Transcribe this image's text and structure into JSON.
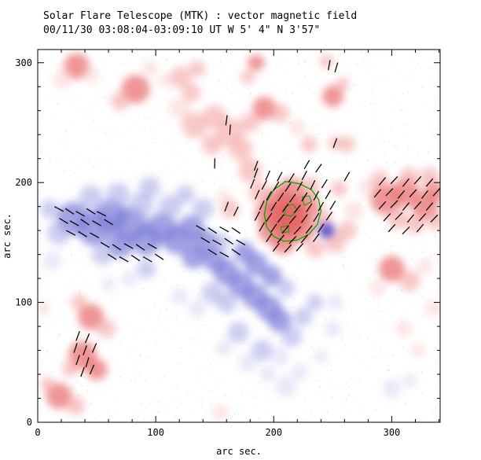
{
  "chart_data": {
    "type": "heatmap",
    "title": "Solar Flare Telescope (MTK) : vector magnetic field",
    "subtitle": "00/11/30  03:08:04-03:09:10 UT    W 5' 4\"  N 3'57\"",
    "xlabel": "arc sec.",
    "ylabel": "arc sec.",
    "xlim": [
      0,
      341
    ],
    "ylim": [
      0,
      311
    ],
    "xticks": [
      0,
      100,
      200,
      300
    ],
    "yticks": [
      0,
      100,
      200,
      300
    ],
    "minor_tick_step": 20,
    "grid": false,
    "colors": {
      "background": "#ffffff",
      "axis": "#000000",
      "positive_polarity": "#e06060",
      "negative_polarity": "#6868d0",
      "contour": "#00aa00",
      "vector": "#000000",
      "speckle_positive": "#f0a0a0",
      "speckle_negative": "#a0a0e0"
    },
    "regions_positive": [
      [
        33,
        297,
        11,
        "m"
      ],
      [
        21,
        286,
        8,
        "f"
      ],
      [
        45,
        290,
        7,
        "f"
      ],
      [
        95,
        295,
        7,
        "f"
      ],
      [
        108,
        285,
        6,
        "f"
      ],
      [
        83,
        278,
        12,
        "m"
      ],
      [
        70,
        268,
        8,
        "l"
      ],
      [
        121,
        288,
        9,
        "l"
      ],
      [
        135,
        295,
        7,
        "l"
      ],
      [
        130,
        275,
        8,
        "l"
      ],
      [
        120,
        262,
        9,
        "f"
      ],
      [
        133,
        248,
        11,
        "l"
      ],
      [
        150,
        255,
        10,
        "l"
      ],
      [
        163,
        242,
        12,
        "l"
      ],
      [
        148,
        232,
        9,
        "l"
      ],
      [
        185,
        300,
        7,
        "m"
      ],
      [
        178,
        288,
        6,
        "l"
      ],
      [
        192,
        262,
        10,
        "m"
      ],
      [
        205,
        258,
        8,
        "l"
      ],
      [
        180,
        250,
        8,
        "l"
      ],
      [
        172,
        228,
        10,
        "l"
      ],
      [
        180,
        210,
        10,
        "l"
      ],
      [
        220,
        246,
        7,
        "f"
      ],
      [
        250,
        272,
        9,
        "m"
      ],
      [
        258,
        282,
        6,
        "l"
      ],
      [
        245,
        301,
        6,
        "l"
      ],
      [
        212,
        172,
        16,
        "s"
      ],
      [
        205,
        182,
        14,
        "m"
      ],
      [
        222,
        162,
        13,
        "m"
      ],
      [
        198,
        160,
        11,
        "m"
      ],
      [
        215,
        192,
        12,
        "m"
      ],
      [
        228,
        180,
        11,
        "m"
      ],
      [
        194,
        174,
        10,
        "m"
      ],
      [
        208,
        150,
        10,
        "m"
      ],
      [
        230,
        196,
        9,
        "l"
      ],
      [
        240,
        170,
        9,
        "l"
      ],
      [
        188,
        192,
        9,
        "l"
      ],
      [
        235,
        145,
        8,
        "l"
      ],
      [
        252,
        150,
        9,
        "l"
      ],
      [
        262,
        160,
        8,
        "l"
      ],
      [
        268,
        176,
        8,
        "f"
      ],
      [
        255,
        195,
        7,
        "l"
      ],
      [
        280,
        196,
        8,
        "f"
      ],
      [
        295,
        186,
        13,
        "m"
      ],
      [
        312,
        192,
        12,
        "m"
      ],
      [
        328,
        180,
        11,
        "m"
      ],
      [
        336,
        192,
        9,
        "m"
      ],
      [
        305,
        170,
        9,
        "l"
      ],
      [
        320,
        165,
        8,
        "l"
      ],
      [
        338,
        168,
        8,
        "l"
      ],
      [
        290,
        202,
        8,
        "l"
      ],
      [
        315,
        205,
        8,
        "l"
      ],
      [
        332,
        205,
        8,
        "l"
      ],
      [
        300,
        128,
        11,
        "m"
      ],
      [
        315,
        118,
        9,
        "l"
      ],
      [
        288,
        112,
        7,
        "f"
      ],
      [
        328,
        130,
        7,
        "f"
      ],
      [
        310,
        78,
        7,
        "f"
      ],
      [
        335,
        95,
        7,
        "f"
      ],
      [
        322,
        60,
        6,
        "f"
      ],
      [
        45,
        88,
        11,
        "m"
      ],
      [
        58,
        78,
        8,
        "l"
      ],
      [
        35,
        100,
        7,
        "l"
      ],
      [
        38,
        56,
        12,
        "m"
      ],
      [
        50,
        44,
        9,
        "m"
      ],
      [
        28,
        45,
        7,
        "l"
      ],
      [
        18,
        22,
        11,
        "m"
      ],
      [
        32,
        14,
        8,
        "l"
      ],
      [
        8,
        32,
        6,
        "l"
      ],
      [
        155,
        8,
        7,
        "f"
      ],
      [
        4,
        95,
        6,
        "f"
      ],
      [
        262,
        232,
        7,
        "l"
      ],
      [
        252,
        233,
        6,
        "l"
      ],
      [
        230,
        232,
        7,
        "l"
      ],
      [
        163,
        178,
        8,
        "l"
      ],
      [
        158,
        188,
        6,
        "f"
      ]
    ],
    "regions_negative": [
      [
        30,
        170,
        14,
        "m"
      ],
      [
        18,
        158,
        10,
        "l"
      ],
      [
        12,
        135,
        8,
        "f"
      ],
      [
        10,
        178,
        8,
        "l"
      ],
      [
        48,
        162,
        15,
        "m"
      ],
      [
        62,
        172,
        14,
        "m"
      ],
      [
        78,
        165,
        15,
        "m"
      ],
      [
        92,
        152,
        13,
        "m"
      ],
      [
        105,
        162,
        13,
        "m"
      ],
      [
        118,
        152,
        12,
        "m"
      ],
      [
        70,
        148,
        11,
        "m"
      ],
      [
        55,
        140,
        9,
        "l"
      ],
      [
        45,
        188,
        10,
        "l"
      ],
      [
        68,
        190,
        10,
        "l"
      ],
      [
        88,
        182,
        10,
        "l"
      ],
      [
        95,
        196,
        9,
        "l"
      ],
      [
        112,
        180,
        10,
        "l"
      ],
      [
        125,
        190,
        8,
        "l"
      ],
      [
        140,
        178,
        9,
        "l"
      ],
      [
        130,
        162,
        11,
        "m"
      ],
      [
        142,
        150,
        11,
        "m"
      ],
      [
        132,
        138,
        10,
        "m"
      ],
      [
        150,
        135,
        10,
        "m"
      ],
      [
        155,
        150,
        8,
        "l"
      ],
      [
        160,
        125,
        11,
        "m"
      ],
      [
        172,
        115,
        11,
        "m"
      ],
      [
        184,
        105,
        11,
        "m"
      ],
      [
        196,
        95,
        11,
        "m"
      ],
      [
        205,
        85,
        10,
        "m"
      ],
      [
        215,
        72,
        9,
        "l"
      ],
      [
        225,
        88,
        8,
        "l"
      ],
      [
        235,
        100,
        7,
        "l"
      ],
      [
        185,
        132,
        10,
        "m"
      ],
      [
        198,
        122,
        9,
        "m"
      ],
      [
        210,
        112,
        8,
        "l"
      ],
      [
        175,
        142,
        9,
        "m"
      ],
      [
        160,
        100,
        9,
        "l"
      ],
      [
        148,
        108,
        9,
        "l"
      ],
      [
        135,
        95,
        8,
        "f"
      ],
      [
        120,
        105,
        7,
        "f"
      ],
      [
        92,
        128,
        8,
        "l"
      ],
      [
        78,
        120,
        7,
        "f"
      ],
      [
        60,
        115,
        6,
        "f"
      ],
      [
        245,
        160,
        7,
        "s"
      ],
      [
        190,
        60,
        9,
        "l"
      ],
      [
        178,
        50,
        8,
        "f"
      ],
      [
        205,
        55,
        8,
        "f"
      ],
      [
        170,
        75,
        9,
        "l"
      ],
      [
        158,
        62,
        7,
        "f"
      ],
      [
        210,
        30,
        9,
        "f"
      ],
      [
        222,
        42,
        7,
        "f"
      ],
      [
        195,
        40,
        7,
        "f"
      ],
      [
        250,
        78,
        7,
        "f"
      ],
      [
        240,
        55,
        6,
        "f"
      ],
      [
        252,
        100,
        7,
        "f"
      ],
      [
        300,
        28,
        8,
        "f"
      ],
      [
        315,
        35,
        6,
        "f"
      ]
    ],
    "vectors": [
      [
        185,
        208,
        70
      ],
      [
        195,
        206,
        66
      ],
      [
        205,
        205,
        62
      ],
      [
        215,
        204,
        58
      ],
      [
        226,
        206,
        62
      ],
      [
        182,
        199,
        68
      ],
      [
        192,
        198,
        62
      ],
      [
        202,
        197,
        58
      ],
      [
        212,
        196,
        56
      ],
      [
        222,
        197,
        60
      ],
      [
        233,
        198,
        64
      ],
      [
        243,
        199,
        58
      ],
      [
        186,
        190,
        66
      ],
      [
        196,
        189,
        60
      ],
      [
        206,
        188,
        56
      ],
      [
        216,
        187,
        54
      ],
      [
        226,
        188,
        58
      ],
      [
        236,
        189,
        62
      ],
      [
        246,
        190,
        60
      ],
      [
        190,
        181,
        64
      ],
      [
        200,
        180,
        58
      ],
      [
        210,
        179,
        54
      ],
      [
        220,
        178,
        52
      ],
      [
        230,
        179,
        56
      ],
      [
        240,
        180,
        60
      ],
      [
        250,
        181,
        58
      ],
      [
        186,
        172,
        62
      ],
      [
        196,
        171,
        56
      ],
      [
        206,
        170,
        52
      ],
      [
        216,
        169,
        50
      ],
      [
        226,
        170,
        54
      ],
      [
        236,
        171,
        58
      ],
      [
        247,
        172,
        56
      ],
      [
        190,
        163,
        60
      ],
      [
        200,
        162,
        55
      ],
      [
        210,
        161,
        50
      ],
      [
        220,
        160,
        48
      ],
      [
        230,
        161,
        52
      ],
      [
        240,
        162,
        56
      ],
      [
        196,
        154,
        56
      ],
      [
        206,
        153,
        50
      ],
      [
        216,
        152,
        47
      ],
      [
        226,
        153,
        50
      ],
      [
        236,
        154,
        54
      ],
      [
        202,
        146,
        52
      ],
      [
        212,
        145,
        48
      ],
      [
        222,
        146,
        48
      ],
      [
        18,
        178,
        152
      ],
      [
        27,
        176,
        147
      ],
      [
        36,
        174,
        151
      ],
      [
        45,
        176,
        148
      ],
      [
        54,
        174,
        153
      ],
      [
        22,
        168,
        149
      ],
      [
        31,
        166,
        151
      ],
      [
        40,
        167,
        146
      ],
      [
        50,
        166,
        150
      ],
      [
        60,
        167,
        148
      ],
      [
        28,
        158,
        152
      ],
      [
        38,
        157,
        148
      ],
      [
        48,
        156,
        151
      ],
      [
        57,
        148,
        150
      ],
      [
        67,
        146,
        147
      ],
      [
        77,
        147,
        151
      ],
      [
        87,
        146,
        146
      ],
      [
        97,
        147,
        150
      ],
      [
        63,
        138,
        148
      ],
      [
        73,
        136,
        151
      ],
      [
        83,
        137,
        146
      ],
      [
        93,
        136,
        150
      ],
      [
        103,
        138,
        147
      ],
      [
        138,
        162,
        150
      ],
      [
        148,
        160,
        147
      ],
      [
        158,
        161,
        151
      ],
      [
        168,
        160,
        146
      ],
      [
        142,
        152,
        149
      ],
      [
        152,
        150,
        151
      ],
      [
        162,
        151,
        146
      ],
      [
        172,
        150,
        150
      ],
      [
        148,
        142,
        148
      ],
      [
        158,
        140,
        151
      ],
      [
        168,
        142,
        146
      ],
      [
        160,
        180,
        70
      ],
      [
        168,
        176,
        64
      ],
      [
        292,
        201,
        50
      ],
      [
        302,
        202,
        47
      ],
      [
        312,
        200,
        52
      ],
      [
        322,
        202,
        48
      ],
      [
        332,
        200,
        50
      ],
      [
        288,
        191,
        50
      ],
      [
        298,
        192,
        46
      ],
      [
        308,
        190,
        50
      ],
      [
        318,
        191,
        48
      ],
      [
        328,
        190,
        52
      ],
      [
        338,
        192,
        48
      ],
      [
        292,
        181,
        48
      ],
      [
        302,
        182,
        46
      ],
      [
        312,
        180,
        50
      ],
      [
        322,
        181,
        48
      ],
      [
        332,
        180,
        50
      ],
      [
        296,
        171,
        48
      ],
      [
        306,
        172,
        46
      ],
      [
        316,
        170,
        50
      ],
      [
        326,
        171,
        48
      ],
      [
        336,
        170,
        46
      ],
      [
        300,
        162,
        48
      ],
      [
        312,
        160,
        46
      ],
      [
        324,
        162,
        50
      ],
      [
        34,
        72,
        70
      ],
      [
        42,
        70,
        67
      ],
      [
        32,
        62,
        72
      ],
      [
        40,
        60,
        70
      ],
      [
        48,
        62,
        67
      ],
      [
        34,
        52,
        71
      ],
      [
        42,
        50,
        73
      ],
      [
        38,
        42,
        70
      ],
      [
        46,
        44,
        67
      ],
      [
        160,
        252,
        82
      ],
      [
        163,
        244,
        86
      ],
      [
        247,
        298,
        80
      ],
      [
        253,
        296,
        74
      ],
      [
        252,
        233,
        70
      ],
      [
        150,
        216,
        88
      ],
      [
        262,
        205,
        60
      ],
      [
        228,
        215,
        60
      ],
      [
        238,
        212,
        55
      ],
      [
        185,
        214,
        70
      ]
    ],
    "contour": {
      "color": "#00aa00",
      "outer": [
        [
          210,
          201
        ],
        [
          222,
          199
        ],
        [
          232,
          194
        ],
        [
          238,
          186
        ],
        [
          240,
          176
        ],
        [
          237,
          165
        ],
        [
          230,
          157
        ],
        [
          220,
          152
        ],
        [
          209,
          151
        ],
        [
          200,
          155
        ],
        [
          194,
          163
        ],
        [
          192,
          173
        ],
        [
          194,
          184
        ],
        [
          200,
          194
        ]
      ],
      "inner": [
        [
          [
            210,
            180
          ],
          [
            216,
            182
          ],
          [
            220,
            177
          ],
          [
            215,
            172
          ],
          [
            209,
            173
          ]
        ],
        [
          [
            224,
            188
          ],
          [
            230,
            189
          ],
          [
            232,
            184
          ],
          [
            226,
            181
          ]
        ],
        [
          [
            206,
            163
          ],
          [
            212,
            164
          ],
          [
            213,
            159
          ],
          [
            207,
            158
          ]
        ]
      ]
    }
  }
}
